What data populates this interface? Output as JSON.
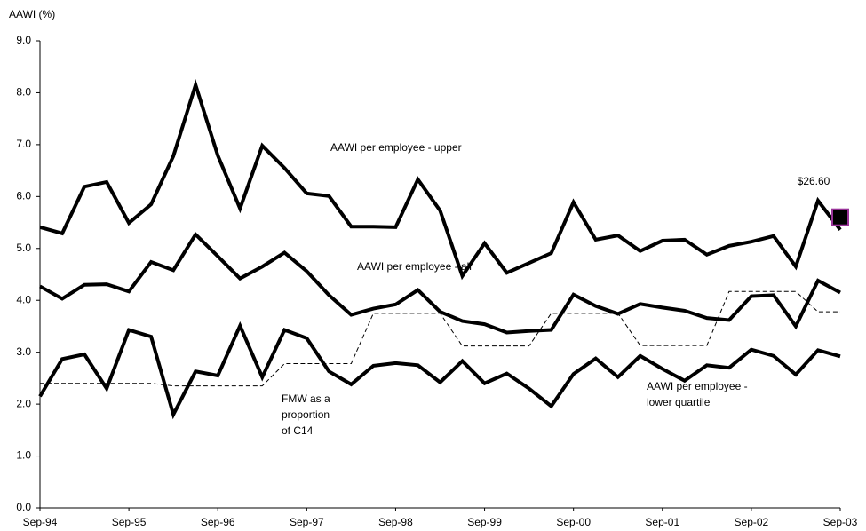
{
  "chart_data": {
    "type": "line",
    "y_label": "AAWI (%)",
    "categories": [
      "Sep-94",
      null,
      null,
      null,
      "Sep-95",
      null,
      null,
      null,
      "Sep-96",
      null,
      null,
      null,
      "Sep-97",
      null,
      null,
      null,
      "Sep-98",
      null,
      null,
      null,
      "Sep-99",
      null,
      null,
      null,
      "Sep-00",
      null,
      null,
      null,
      "Sep-01",
      null,
      null,
      null,
      "Sep-02",
      null,
      null,
      null,
      "Sep-03"
    ],
    "series": [
      {
        "color": "#000000",
        "dashed": false,
        "values": [
          5.41,
          5.29,
          6.19,
          6.28,
          5.49,
          5.85,
          6.78,
          8.15,
          6.79,
          5.77,
          6.98,
          6.55,
          6.06,
          6.01,
          5.42,
          5.42,
          5.41,
          6.33,
          5.73,
          4.47,
          5.1,
          4.53,
          4.72,
          4.91,
          5.89,
          5.17,
          5.25,
          4.95,
          5.15,
          5.17,
          4.88,
          5.05,
          5.13,
          5.24,
          4.65,
          5.92,
          5.36
        ]
      },
      {
        "color": "#000000",
        "dashed": false,
        "values": [
          4.27,
          4.03,
          4.3,
          4.31,
          4.17,
          4.74,
          4.58,
          5.27,
          4.85,
          4.42,
          4.65,
          4.92,
          4.56,
          4.1,
          3.72,
          3.84,
          3.92,
          4.2,
          3.78,
          3.6,
          3.54,
          3.38,
          3.41,
          3.43,
          4.11,
          3.89,
          3.74,
          3.93,
          3.86,
          3.8,
          3.66,
          3.62,
          4.08,
          4.1,
          3.5,
          4.38,
          4.15
        ]
      },
      {
        "color": "#000000",
        "dashed": false,
        "values": [
          2.15,
          2.87,
          2.96,
          2.3,
          3.43,
          3.3,
          1.8,
          2.63,
          2.55,
          3.51,
          2.52,
          3.43,
          3.27,
          2.63,
          2.38,
          2.74,
          2.79,
          2.75,
          2.42,
          2.83,
          2.4,
          2.59,
          2.3,
          1.96,
          2.58,
          2.88,
          2.52,
          2.93,
          2.68,
          2.45,
          2.75,
          2.7,
          3.05,
          2.93,
          2.57,
          3.04,
          2.92
        ]
      },
      {
        "color": "#000000",
        "dashed": true,
        "values": [
          2.4,
          2.4,
          2.4,
          2.4,
          2.4,
          2.4,
          2.35,
          2.35,
          2.35,
          2.35,
          2.35,
          2.78,
          2.78,
          2.78,
          2.78,
          3.75,
          3.75,
          3.75,
          3.75,
          3.12,
          3.12,
          3.12,
          3.12,
          3.75,
          3.75,
          3.75,
          3.75,
          3.13,
          3.13,
          3.13,
          3.13,
          4.17,
          4.17,
          4.17,
          4.17,
          3.78,
          3.78
        ]
      }
    ],
    "annotations": [
      {
        "lines": [
          "AAWI per employee - upper"
        ]
      },
      {
        "lines": [
          "AAWI per employee - all"
        ]
      },
      {
        "lines": [
          "FMW as a",
          "proportion",
          "of C14"
        ]
      },
      {
        "lines": [
          "AAWI per employee -",
          "lower quartile"
        ]
      }
    ],
    "marker": {
      "value": 5.6,
      "label": "$26.60",
      "color": "#000000",
      "border": "#993399"
    },
    "ylim": [
      0,
      9
    ],
    "yticks": [
      {
        "value": 0,
        "label": "0.0"
      },
      {
        "value": 1,
        "label": "1.0"
      },
      {
        "value": 2,
        "label": "2.0"
      },
      {
        "value": 3,
        "label": "3.0"
      },
      {
        "value": 4,
        "label": "4.0"
      },
      {
        "value": 5,
        "label": "5.0"
      },
      {
        "value": 6,
        "label": "6.0"
      },
      {
        "value": 7,
        "label": "7.0"
      },
      {
        "value": 8,
        "label": "8.0"
      },
      {
        "value": 9,
        "label": "9.0"
      }
    ],
    "grid": false
  }
}
